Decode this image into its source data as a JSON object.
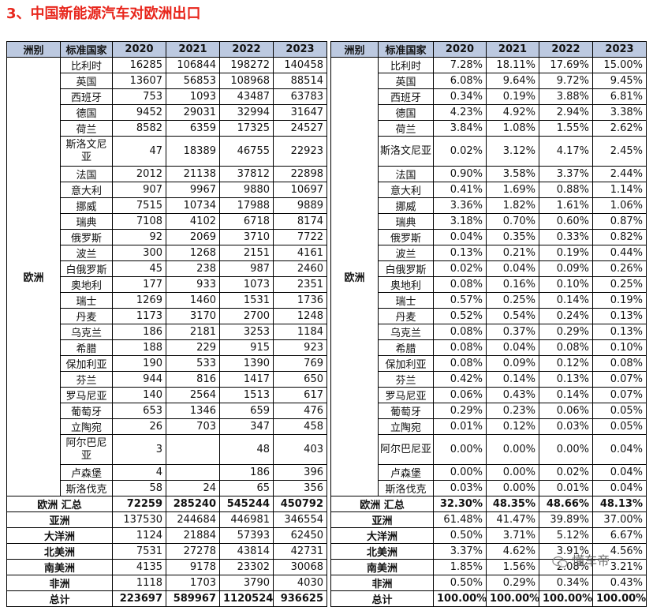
{
  "title": {
    "number": "3、",
    "text": "中国新能源汽车对欧洲出口"
  },
  "headers": [
    "洲别",
    "标准国家",
    "2020",
    "2021",
    "2022",
    "2023"
  ],
  "region_europe": "欧洲",
  "countries": [
    {
      "name": "比利时",
      "counts": [
        "16285",
        "106844",
        "198272",
        "140458"
      ],
      "pcts": [
        "7.28%",
        "18.11%",
        "17.69%",
        "15.00%"
      ]
    },
    {
      "name": "英国",
      "counts": [
        "13607",
        "56853",
        "108968",
        "88514"
      ],
      "pcts": [
        "6.08%",
        "9.64%",
        "9.72%",
        "9.45%"
      ]
    },
    {
      "name": "西班牙",
      "counts": [
        "753",
        "1093",
        "43487",
        "63783"
      ],
      "pcts": [
        "0.34%",
        "0.19%",
        "3.88%",
        "6.81%"
      ]
    },
    {
      "name": "德国",
      "counts": [
        "9452",
        "29031",
        "32994",
        "31647"
      ],
      "pcts": [
        "4.23%",
        "4.92%",
        "2.94%",
        "3.38%"
      ]
    },
    {
      "name": "荷兰",
      "counts": [
        "8582",
        "6359",
        "17325",
        "24527"
      ],
      "pcts": [
        "3.84%",
        "1.08%",
        "1.55%",
        "2.62%"
      ]
    },
    {
      "name": "斯洛文尼亚",
      "counts": [
        "47",
        "18389",
        "46755",
        "22923"
      ],
      "pcts": [
        "0.02%",
        "3.12%",
        "4.17%",
        "2.45%"
      ]
    },
    {
      "name": "法国",
      "counts": [
        "2012",
        "21138",
        "37812",
        "22898"
      ],
      "pcts": [
        "0.90%",
        "3.58%",
        "3.37%",
        "2.44%"
      ]
    },
    {
      "name": "意大利",
      "counts": [
        "907",
        "9967",
        "9880",
        "10697"
      ],
      "pcts": [
        "0.41%",
        "1.69%",
        "0.88%",
        "1.14%"
      ]
    },
    {
      "name": "挪威",
      "counts": [
        "7515",
        "10734",
        "17988",
        "9889"
      ],
      "pcts": [
        "3.36%",
        "1.82%",
        "1.61%",
        "1.06%"
      ]
    },
    {
      "name": "瑞典",
      "counts": [
        "7108",
        "4102",
        "6718",
        "8174"
      ],
      "pcts": [
        "3.18%",
        "0.70%",
        "0.60%",
        "0.87%"
      ]
    },
    {
      "name": "俄罗斯",
      "counts": [
        "92",
        "2069",
        "3710",
        "7722"
      ],
      "pcts": [
        "0.04%",
        "0.35%",
        "0.33%",
        "0.82%"
      ]
    },
    {
      "name": "波兰",
      "counts": [
        "300",
        "1268",
        "2151",
        "4161"
      ],
      "pcts": [
        "0.13%",
        "0.21%",
        "0.19%",
        "0.44%"
      ]
    },
    {
      "name": "白俄罗斯",
      "counts": [
        "45",
        "238",
        "987",
        "2460"
      ],
      "pcts": [
        "0.02%",
        "0.04%",
        "0.09%",
        "0.26%"
      ]
    },
    {
      "name": "奥地利",
      "counts": [
        "177",
        "933",
        "1073",
        "2351"
      ],
      "pcts": [
        "0.08%",
        "0.16%",
        "0.10%",
        "0.25%"
      ]
    },
    {
      "name": "瑞士",
      "counts": [
        "1269",
        "1460",
        "1531",
        "1736"
      ],
      "pcts": [
        "0.57%",
        "0.25%",
        "0.14%",
        "0.19%"
      ]
    },
    {
      "name": "丹麦",
      "counts": [
        "1173",
        "3170",
        "2700",
        "1248"
      ],
      "pcts": [
        "0.52%",
        "0.54%",
        "0.24%",
        "0.13%"
      ]
    },
    {
      "name": "乌克兰",
      "counts": [
        "186",
        "2181",
        "3253",
        "1184"
      ],
      "pcts": [
        "0.08%",
        "0.37%",
        "0.29%",
        "0.13%"
      ]
    },
    {
      "name": "希腊",
      "counts": [
        "188",
        "229",
        "915",
        "923"
      ],
      "pcts": [
        "0.08%",
        "0.04%",
        "0.08%",
        "0.10%"
      ]
    },
    {
      "name": "保加利亚",
      "counts": [
        "190",
        "533",
        "1390",
        "769"
      ],
      "pcts": [
        "0.08%",
        "0.09%",
        "0.12%",
        "0.08%"
      ]
    },
    {
      "name": "芬兰",
      "counts": [
        "944",
        "816",
        "1417",
        "650"
      ],
      "pcts": [
        "0.42%",
        "0.14%",
        "0.13%",
        "0.07%"
      ]
    },
    {
      "name": "罗马尼亚",
      "counts": [
        "140",
        "2564",
        "1513",
        "617"
      ],
      "pcts": [
        "0.06%",
        "0.43%",
        "0.14%",
        "0.07%"
      ]
    },
    {
      "name": "葡萄牙",
      "counts": [
        "653",
        "1346",
        "659",
        "476"
      ],
      "pcts": [
        "0.29%",
        "0.23%",
        "0.06%",
        "0.05%"
      ]
    },
    {
      "name": "立陶宛",
      "counts": [
        "26",
        "703",
        "347",
        "458"
      ],
      "pcts": [
        "0.01%",
        "0.12%",
        "0.03%",
        "0.05%"
      ]
    },
    {
      "name": "阿尔巴尼亚",
      "counts": [
        "3",
        "",
        "48",
        "403"
      ],
      "pcts": [
        "0.00%",
        "0.00%",
        "0.00%",
        "0.04%"
      ]
    },
    {
      "name": "卢森堡",
      "counts": [
        "4",
        "",
        "186",
        "396"
      ],
      "pcts": [
        "0.00%",
        "0.00%",
        "0.02%",
        "0.04%"
      ]
    },
    {
      "name": "斯洛伐克",
      "counts": [
        "58",
        "24",
        "65",
        "356"
      ],
      "pcts": [
        "0.03%",
        "0.00%",
        "0.01%",
        "0.04%"
      ]
    }
  ],
  "europe_total": {
    "label": "欧洲 汇总",
    "counts": [
      "72259",
      "285240",
      "545244",
      "450792"
    ],
    "pcts": [
      "32.30%",
      "48.35%",
      "48.66%",
      "48.13%"
    ]
  },
  "regions": [
    {
      "name": "亚洲",
      "counts": [
        "137530",
        "244684",
        "446981",
        "346554"
      ],
      "pcts": [
        "61.48%",
        "41.47%",
        "39.89%",
        "37.00%"
      ]
    },
    {
      "name": "大洋洲",
      "counts": [
        "1124",
        "21884",
        "57393",
        "62450"
      ],
      "pcts": [
        "0.50%",
        "3.71%",
        "5.12%",
        "6.67%"
      ]
    },
    {
      "name": "北美洲",
      "counts": [
        "7531",
        "27278",
        "43814",
        "42731"
      ],
      "pcts": [
        "3.37%",
        "4.62%",
        "3.91%",
        "4.56%"
      ]
    },
    {
      "name": "南美洲",
      "counts": [
        "4135",
        "9178",
        "23302",
        "30068"
      ],
      "pcts": [
        "1.85%",
        "1.56%",
        "2.08%",
        "3.21%"
      ]
    },
    {
      "name": "非洲",
      "counts": [
        "1118",
        "1703",
        "3790",
        "4030"
      ],
      "pcts": [
        "0.50%",
        "0.29%",
        "0.34%",
        "0.43%"
      ]
    }
  ],
  "grand_total": {
    "label": "总计",
    "counts": [
      "223697",
      "589967",
      "1120524",
      "936625"
    ],
    "pcts": [
      "100.00%",
      "100.00%",
      "100.00%",
      "100.00%"
    ]
  },
  "watermark": {
    "text": "懂车帝",
    "icon": "wechat-icon"
  }
}
